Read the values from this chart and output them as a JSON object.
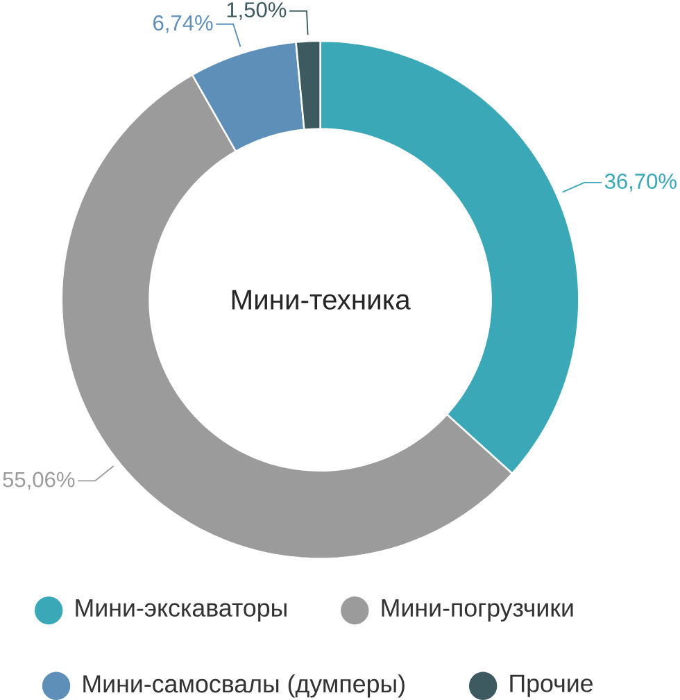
{
  "chart_data": {
    "type": "donut",
    "title": "Мини-техника",
    "categories": [
      "Мини-экскаваторы",
      "Мини-погрузчики",
      "Мини-самосвалы (думперы)",
      "Прочие"
    ],
    "values": [
      36.7,
      55.06,
      6.74,
      1.5
    ],
    "value_labels": [
      "36,70%",
      "55,06%",
      "6,74%",
      "1,50%"
    ],
    "colors": [
      "#3aa8b6",
      "#9b9b9b",
      "#5e8fb8",
      "#3c5a5f"
    ],
    "legend": "bottom"
  }
}
